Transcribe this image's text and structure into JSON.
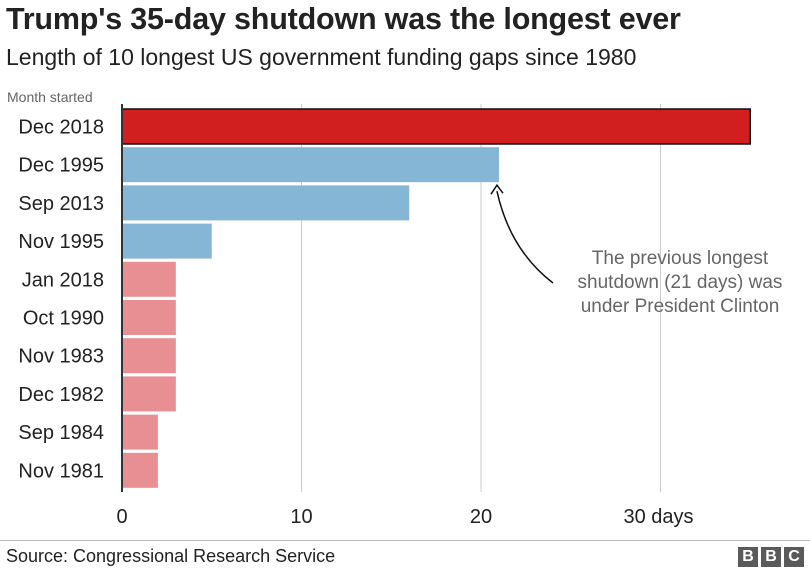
{
  "chart_data": {
    "type": "bar",
    "orientation": "horizontal",
    "title": "Trump's 35-day shutdown was the longest ever",
    "subtitle": "Length of 10 longest US government funding gaps since 1980",
    "category_axis_label": "Month started",
    "categories": [
      "Dec 2018",
      "Dec 1995",
      "Sep 2013",
      "Nov 1995",
      "Jan 2018",
      "Oct 1990",
      "Nov 1983",
      "Dec 1982",
      "Sep 1984",
      "Nov 1981"
    ],
    "values": [
      35,
      21,
      16,
      5,
      3,
      3,
      3,
      3,
      2,
      2
    ],
    "bar_colors": [
      "#d11f1f",
      "#85b6d6",
      "#85b6d6",
      "#85b6d6",
      "#e88f93",
      "#e88f93",
      "#e88f93",
      "#e88f93",
      "#e88f93",
      "#e88f93"
    ],
    "xlim": [
      0,
      35
    ],
    "x_ticks": [
      0,
      10,
      20,
      30
    ],
    "x_tick_labels": [
      "0",
      "10",
      "20",
      "30 days"
    ],
    "grid": "vertical",
    "annotation": {
      "lines": [
        "The previous longest",
        "shutdown (21 days) was",
        "under President Clinton"
      ],
      "points_to": "Dec 1995"
    }
  },
  "colors": {
    "grid": "#cccccc",
    "axis": "#333333",
    "text": "#222222",
    "muted": "#666666"
  },
  "footer": {
    "source": "Source: Congressional Research Service",
    "logo": [
      "B",
      "B",
      "C"
    ]
  }
}
